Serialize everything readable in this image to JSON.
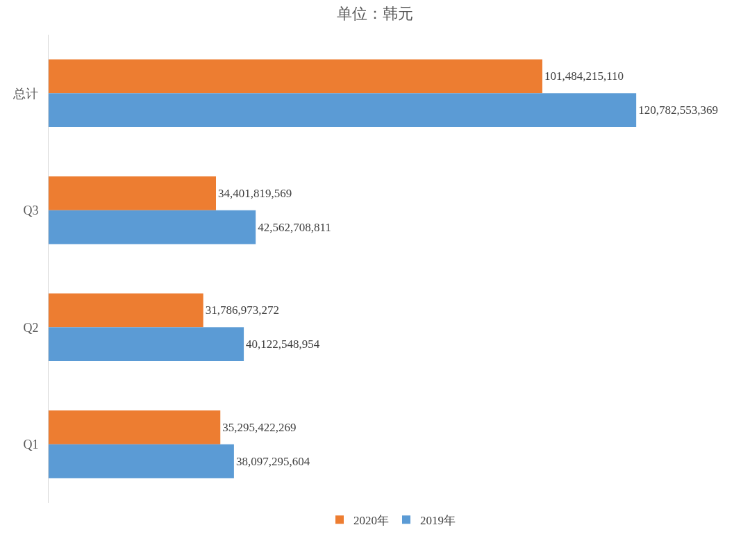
{
  "chart_data": {
    "type": "bar",
    "orientation": "horizontal",
    "title": "单位：韩元",
    "categories": [
      "总计",
      "Q3",
      "Q2",
      "Q1"
    ],
    "series": [
      {
        "name": "2020年",
        "color": "#ed7d31",
        "values": [
          101484215110,
          34401819569,
          31786973272,
          35295422269
        ],
        "value_labels": [
          "101,484,215,110",
          "34,401,819,569",
          "31,786,973,272",
          "35,295,422,269"
        ]
      },
      {
        "name": "2019年",
        "color": "#5b9bd5",
        "values": [
          120782553369,
          42562708811,
          40122548954,
          38097295604
        ],
        "value_labels": [
          "120,782,553,369",
          "42,562,708,811",
          "40,122,548,954",
          "38,097,295,604"
        ]
      }
    ],
    "legend": "bottom"
  }
}
